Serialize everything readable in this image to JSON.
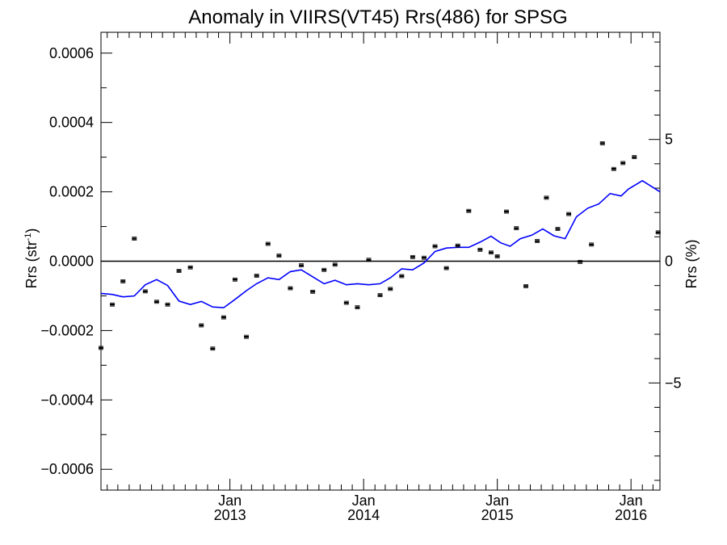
{
  "chart_data": {
    "type": "scatter",
    "title": "Anomaly in VIIRS(VT45) Rrs(486) for SPSG",
    "ylabel_left": "Rrs (str",
    "ylabel_left_sup": "-1",
    "ylabel_left_close": ")",
    "ylabel_right": "Rrs (%)",
    "x_range": [
      "2012-01-15",
      "2016-03-20"
    ],
    "ylim_left": [
      -0.00066,
      0.00066
    ],
    "ylim_right": [
      -9.4,
      9.4
    ],
    "x_ticks": [
      {
        "date": "2013-01-01",
        "label_top": "Jan",
        "label_bottom": "2013"
      },
      {
        "date": "2014-01-01",
        "label_top": "Jan",
        "label_bottom": "2014"
      },
      {
        "date": "2015-01-01",
        "label_top": "Jan",
        "label_bottom": "2015"
      },
      {
        "date": "2016-01-01",
        "label_top": "Jan",
        "label_bottom": "2016"
      }
    ],
    "y_ticks_left": [
      {
        "value": 0.0006,
        "label": "0.0006"
      },
      {
        "value": 0.0004,
        "label": "0.0004"
      },
      {
        "value": 0.0002,
        "label": "0.0002"
      },
      {
        "value": 0.0,
        "label": "0.0000"
      },
      {
        "value": -0.0002,
        "label": "−0.0002"
      },
      {
        "value": -0.0004,
        "label": "−0.0004"
      },
      {
        "value": -0.0006,
        "label": "−0.0006"
      }
    ],
    "y_ticks_right": [
      {
        "value": 5,
        "label": "5"
      },
      {
        "value": 0,
        "label": "0"
      },
      {
        "value": -5,
        "label": "−5"
      }
    ],
    "zero_line": 0,
    "series": [
      {
        "kind": "points_with_errorbars",
        "color": "#000000",
        "points": [
          {
            "x": "2012-01-15",
            "y": -0.00025
          },
          {
            "x": "2012-02-15",
            "y": -0.000125
          },
          {
            "x": "2012-03-15",
            "y": -5.8e-05
          },
          {
            "x": "2012-04-15",
            "y": 6.5e-05
          },
          {
            "x": "2012-05-15",
            "y": -8.7e-05
          },
          {
            "x": "2012-06-15",
            "y": -0.000117
          },
          {
            "x": "2012-07-15",
            "y": -0.000125
          },
          {
            "x": "2012-08-15",
            "y": -2.8e-05
          },
          {
            "x": "2012-09-15",
            "y": -1.8e-05
          },
          {
            "x": "2012-10-15",
            "y": -0.000185
          },
          {
            "x": "2012-11-15",
            "y": -0.000252
          },
          {
            "x": "2012-12-15",
            "y": -0.000162
          },
          {
            "x": "2013-01-15",
            "y": -5.3e-05
          },
          {
            "x": "2013-02-15",
            "y": -0.000218
          },
          {
            "x": "2013-03-15",
            "y": -4.2e-05
          },
          {
            "x": "2013-04-15",
            "y": 5e-05
          },
          {
            "x": "2013-05-15",
            "y": 1.6e-05
          },
          {
            "x": "2013-06-15",
            "y": -7.8e-05
          },
          {
            "x": "2013-07-15",
            "y": -1.2e-05
          },
          {
            "x": "2013-08-15",
            "y": -8.8e-05
          },
          {
            "x": "2013-09-15",
            "y": -2.5e-05
          },
          {
            "x": "2013-10-15",
            "y": -1e-05
          },
          {
            "x": "2013-11-15",
            "y": -0.00012
          },
          {
            "x": "2013-12-15",
            "y": -0.000133
          },
          {
            "x": "2014-01-15",
            "y": 4e-06
          },
          {
            "x": "2014-02-15",
            "y": -9.8e-05
          },
          {
            "x": "2014-03-15",
            "y": -8e-05
          },
          {
            "x": "2014-04-15",
            "y": -4.3e-05
          },
          {
            "x": "2014-05-15",
            "y": 1.2e-05
          },
          {
            "x": "2014-06-15",
            "y": 1e-05
          },
          {
            "x": "2014-07-15",
            "y": 4.3e-05
          },
          {
            "x": "2014-08-15",
            "y": -2e-05
          },
          {
            "x": "2014-09-15",
            "y": 4.5e-05
          },
          {
            "x": "2014-10-15",
            "y": 0.000145
          },
          {
            "x": "2014-11-15",
            "y": 3.3e-05
          },
          {
            "x": "2014-12-15",
            "y": 2.5e-05
          },
          {
            "x": "2015-01-01",
            "y": 1.4e-05
          },
          {
            "x": "2015-01-26",
            "y": 0.000143
          },
          {
            "x": "2015-02-22",
            "y": 9.5e-05
          },
          {
            "x": "2015-03-20",
            "y": -7.2e-05
          },
          {
            "x": "2015-04-20",
            "y": 5.8e-05
          },
          {
            "x": "2015-05-15",
            "y": 0.000183
          },
          {
            "x": "2015-06-15",
            "y": 9.3e-05
          },
          {
            "x": "2015-07-15",
            "y": 0.000136
          },
          {
            "x": "2015-08-15",
            "y": -2e-06
          },
          {
            "x": "2015-09-15",
            "y": 4.8e-05
          },
          {
            "x": "2015-10-15",
            "y": 0.00034
          },
          {
            "x": "2015-11-15",
            "y": 0.000266
          },
          {
            "x": "2015-12-10",
            "y": 0.000283
          },
          {
            "x": "2016-01-10",
            "y": 0.0003
          },
          {
            "x": "2016-03-15",
            "y": 8.3e-05
          }
        ]
      },
      {
        "kind": "line",
        "color": "#0000ff",
        "points": [
          {
            "x": "2012-01-15",
            "y": -9.3e-05
          },
          {
            "x": "2012-02-15",
            "y": -9.6e-05
          },
          {
            "x": "2012-03-15",
            "y": -0.000103
          },
          {
            "x": "2012-04-15",
            "y": -0.0001
          },
          {
            "x": "2012-05-15",
            "y": -6.8e-05
          },
          {
            "x": "2012-06-15",
            "y": -5.3e-05
          },
          {
            "x": "2012-07-15",
            "y": -7e-05
          },
          {
            "x": "2012-08-15",
            "y": -0.000115
          },
          {
            "x": "2012-09-15",
            "y": -0.000125
          },
          {
            "x": "2012-10-15",
            "y": -0.000116
          },
          {
            "x": "2012-11-15",
            "y": -0.000132
          },
          {
            "x": "2012-12-15",
            "y": -0.000134
          },
          {
            "x": "2013-01-15",
            "y": -0.00011
          },
          {
            "x": "2013-02-15",
            "y": -8.5e-05
          },
          {
            "x": "2013-03-15",
            "y": -6.5e-05
          },
          {
            "x": "2013-04-15",
            "y": -4.8e-05
          },
          {
            "x": "2013-05-15",
            "y": -5.3e-05
          },
          {
            "x": "2013-06-15",
            "y": -3e-05
          },
          {
            "x": "2013-07-15",
            "y": -2.5e-05
          },
          {
            "x": "2013-08-15",
            "y": -4.5e-05
          },
          {
            "x": "2013-09-15",
            "y": -6.5e-05
          },
          {
            "x": "2013-10-15",
            "y": -5.5e-05
          },
          {
            "x": "2013-11-15",
            "y": -6.8e-05
          },
          {
            "x": "2013-12-15",
            "y": -6.5e-05
          },
          {
            "x": "2014-01-15",
            "y": -6.8e-05
          },
          {
            "x": "2014-02-15",
            "y": -6.5e-05
          },
          {
            "x": "2014-03-15",
            "y": -4.8e-05
          },
          {
            "x": "2014-04-15",
            "y": -2.2e-05
          },
          {
            "x": "2014-05-15",
            "y": -2.5e-05
          },
          {
            "x": "2014-06-15",
            "y": -5e-06
          },
          {
            "x": "2014-07-15",
            "y": 2.8e-05
          },
          {
            "x": "2014-08-15",
            "y": 3.8e-05
          },
          {
            "x": "2014-09-15",
            "y": 4e-05
          },
          {
            "x": "2014-10-15",
            "y": 4e-05
          },
          {
            "x": "2014-11-15",
            "y": 5.5e-05
          },
          {
            "x": "2014-12-15",
            "y": 7.2e-05
          },
          {
            "x": "2015-01-10",
            "y": 5.3e-05
          },
          {
            "x": "2015-02-05",
            "y": 4.3e-05
          },
          {
            "x": "2015-03-05",
            "y": 6.5e-05
          },
          {
            "x": "2015-04-05",
            "y": 7.5e-05
          },
          {
            "x": "2015-05-05",
            "y": 9.3e-05
          },
          {
            "x": "2015-06-05",
            "y": 7.3e-05
          },
          {
            "x": "2015-07-05",
            "y": 6.5e-05
          },
          {
            "x": "2015-08-05",
            "y": 0.000128
          },
          {
            "x": "2015-09-05",
            "y": 0.000153
          },
          {
            "x": "2015-10-05",
            "y": 0.000165
          },
          {
            "x": "2015-11-05",
            "y": 0.000195
          },
          {
            "x": "2015-12-05",
            "y": 0.000188
          },
          {
            "x": "2015-12-25",
            "y": 0.000208
          },
          {
            "x": "2016-02-01",
            "y": 0.000232
          },
          {
            "x": "2016-03-20",
            "y": 0.0002
          }
        ]
      }
    ],
    "grid": false,
    "legend": "none"
  }
}
